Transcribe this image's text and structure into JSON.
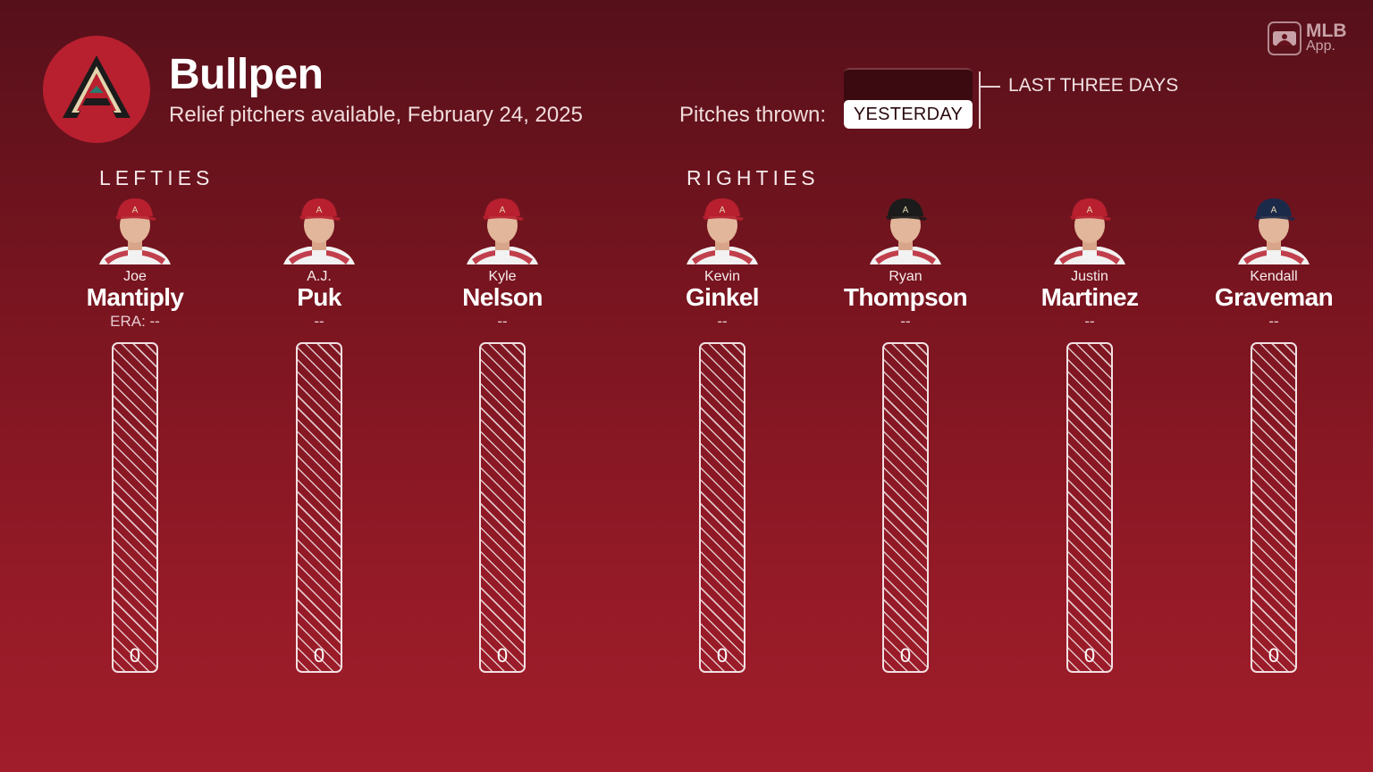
{
  "header": {
    "title": "Bullpen",
    "subtitle": "Relief pitchers available, February 24, 2025",
    "pitches_label": "Pitches thrown:",
    "selected_option": "YESTERDAY",
    "alt_option": "LAST THREE DAYS"
  },
  "branding": {
    "app_name": "MLB",
    "app_sub": "App."
  },
  "colors": {
    "team_red": "#b8202f",
    "team_black": "#1b1b1b",
    "team_sand": "#e3d4ad",
    "background_top": "#56101a",
    "background_bottom": "#a11d2b"
  },
  "groups": {
    "lefties": "LEFTIES",
    "righties": "RIGHTIES"
  },
  "pitchers": [
    {
      "first": "Joe",
      "last": "Mantiply",
      "era": "ERA: --",
      "pitches": "0",
      "group": "lefties",
      "cap_color": "#b8202f"
    },
    {
      "first": "A.J.",
      "last": "Puk",
      "era": "--",
      "pitches": "0",
      "group": "lefties",
      "cap_color": "#b8202f"
    },
    {
      "first": "Kyle",
      "last": "Nelson",
      "era": "--",
      "pitches": "0",
      "group": "lefties",
      "cap_color": "#b8202f"
    },
    {
      "first": "Kevin",
      "last": "Ginkel",
      "era": "--",
      "pitches": "0",
      "group": "righties",
      "cap_color": "#b8202f"
    },
    {
      "first": "Ryan",
      "last": "Thompson",
      "era": "--",
      "pitches": "0",
      "group": "righties",
      "cap_color": "#1b1b1b"
    },
    {
      "first": "Justin",
      "last": "Martinez",
      "era": "--",
      "pitches": "0",
      "group": "righties",
      "cap_color": "#b8202f"
    },
    {
      "first": "Kendall",
      "last": "Graveman",
      "era": "--",
      "pitches": "0",
      "group": "righties",
      "cap_color": "#1c2a4a"
    }
  ]
}
